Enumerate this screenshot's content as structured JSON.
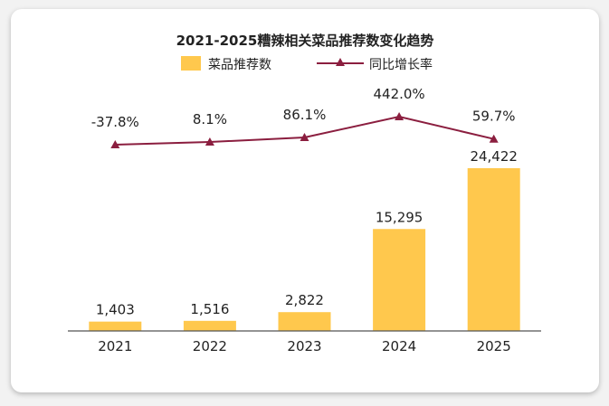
{
  "colors": {
    "bar": "#FFC84D",
    "line": "#8B1E3F",
    "axis": "#555555"
  },
  "chart_data": {
    "type": "bar",
    "title": "2021-2025糟辣相关菜品推荐数变化趋势",
    "categories": [
      "2021",
      "2022",
      "2023",
      "2024",
      "2025"
    ],
    "series": [
      {
        "name": "菜品推荐数",
        "type": "bar",
        "values": [
          1403,
          1516,
          2822,
          15295,
          24422
        ],
        "labels": [
          "1,403",
          "1,516",
          "2,822",
          "15,295",
          "24,422"
        ]
      },
      {
        "name": "同比增长率",
        "type": "line",
        "values": [
          -37.8,
          8.1,
          86.1,
          442.0,
          59.7
        ],
        "labels": [
          "-37.8%",
          "8.1%",
          "86.1%",
          "442.0%",
          "59.7%"
        ]
      }
    ],
    "legend": [
      "菜品推荐数",
      "同比增长率"
    ],
    "legend_position": "top-center",
    "xlabel": "",
    "ylabel": "",
    "grid": false
  }
}
